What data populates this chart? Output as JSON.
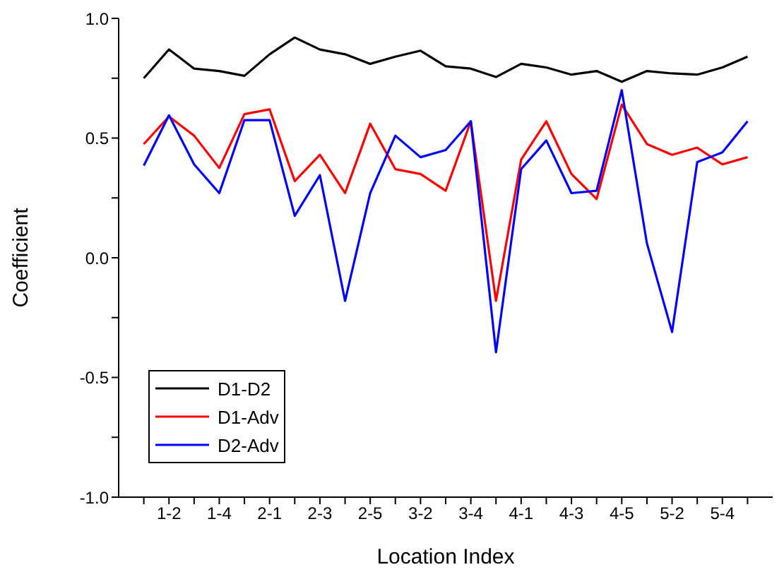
{
  "chart_data": {
    "type": "line",
    "xlabel": "Location Index",
    "ylabel": "Coefficient",
    "categories": [
      null,
      "1-2",
      null,
      "1-4",
      null,
      "2-1",
      null,
      "2-3",
      null,
      "2-5",
      null,
      "3-2",
      null,
      "3-4",
      null,
      "4-1",
      null,
      "4-3",
      null,
      "4-5",
      null,
      "5-2",
      null,
      "5-4",
      null
    ],
    "series": [
      {
        "name": "D1-D2",
        "color": "#000000",
        "values": [
          0.75,
          0.87,
          0.79,
          0.78,
          0.76,
          0.85,
          0.92,
          0.87,
          0.85,
          0.81,
          0.84,
          0.865,
          0.8,
          0.79,
          0.755,
          0.81,
          0.795,
          0.765,
          0.78,
          0.735,
          0.78,
          0.77,
          0.765,
          0.795,
          0.84
        ]
      },
      {
        "name": "D1-Adv",
        "color": "#ff0000",
        "values": [
          0.475,
          0.59,
          0.51,
          0.375,
          0.6,
          0.62,
          0.32,
          0.43,
          0.27,
          0.56,
          0.37,
          0.35,
          0.28,
          0.57,
          -0.18,
          0.41,
          0.57,
          0.35,
          0.245,
          0.64,
          0.475,
          0.43,
          0.46,
          0.39,
          0.42
        ]
      },
      {
        "name": "D2-Adv",
        "color": "#0000ff",
        "values": [
          0.385,
          0.595,
          0.39,
          0.27,
          0.575,
          0.575,
          0.175,
          0.345,
          -0.18,
          0.27,
          0.51,
          0.42,
          0.45,
          0.57,
          -0.395,
          0.37,
          0.49,
          0.27,
          0.28,
          0.7,
          0.06,
          -0.31,
          0.4,
          0.44,
          0.57
        ]
      }
    ],
    "ylim": [
      -1,
      1
    ],
    "yticks": [
      {
        "value": -1,
        "label": "-1.0"
      },
      {
        "value": -0.75,
        "label": null
      },
      -0.5,
      {
        "value": -0.25,
        "label": null
      },
      {
        "value": 0,
        "label": "0.0"
      },
      {
        "value": 0.25,
        "label": null
      },
      0.5,
      {
        "value": 0.75,
        "label": null
      },
      {
        "value": 1,
        "label": "1.0"
      }
    ],
    "grid": false,
    "legend": "bottom left",
    "marker": "none",
    "line_style": "solid"
  }
}
